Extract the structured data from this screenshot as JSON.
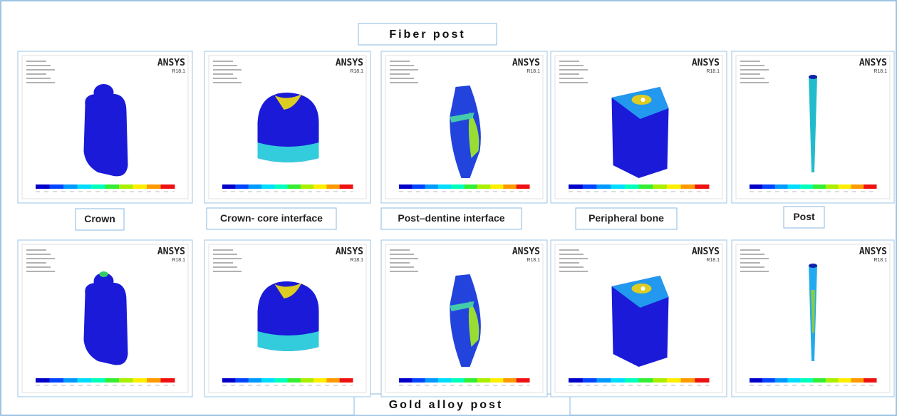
{
  "figure": {
    "top_title": "Fiber post",
    "bottom_title": "Gold alloy post",
    "software": "ANSYS",
    "version": "R18.1",
    "labels": [
      "Crown",
      "Crown- core interface",
      "Post–dentine interface",
      "Peripheral bone",
      "Post"
    ]
  }
}
